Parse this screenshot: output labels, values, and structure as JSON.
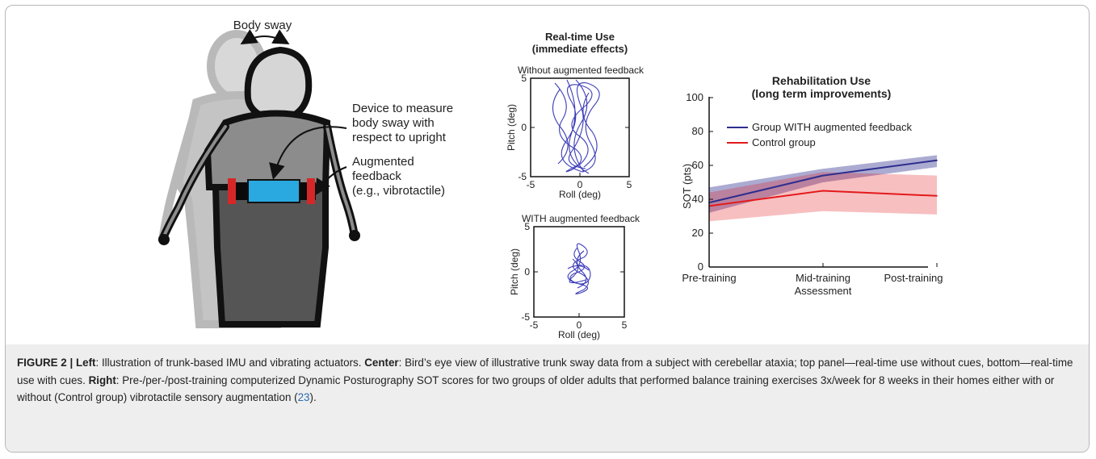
{
  "figure": {
    "left_panel": {
      "body_sway_label": "Body sway",
      "device_label": [
        "Device to measure",
        "body sway with",
        "respect to upright"
      ],
      "feedback_label": [
        "Augmented",
        "feedback",
        "(e.g., vibrotactile)"
      ]
    },
    "center_panel": {
      "title": [
        "Real-time Use",
        "(immediate effects)"
      ],
      "top_plot": {
        "title": "Without augmented feedback",
        "xlabel": "Roll (deg)",
        "ylabel": "Pitch (deg)",
        "xticks": [
          "-5",
          "0",
          "5"
        ],
        "yticks": [
          "5",
          "0",
          "-5"
        ]
      },
      "bottom_plot": {
        "title": "WITH augmented feedback",
        "xlabel": "Roll (deg)",
        "ylabel": "Pitch (deg)",
        "xticks": [
          "-5",
          "0",
          "5"
        ],
        "yticks": [
          "5",
          "0",
          "-5"
        ]
      }
    },
    "right_panel": {
      "title": [
        "Rehabilitation Use",
        "(long term improvements)"
      ],
      "ylabel": "SOT (pts)",
      "xtick_labels": [
        "Pre-training",
        "Mid-training",
        "Assessment",
        "Post-training"
      ],
      "yticks": [
        "100",
        "80",
        "60",
        "40",
        "20",
        "0"
      ],
      "legend": [
        "Group WITH augmented feedback",
        "Control group"
      ]
    }
  },
  "chart_data": [
    {
      "type": "line",
      "title": "Rehabilitation Use (long term improvements)",
      "xlabel": "",
      "ylabel": "SOT (pts)",
      "categories": [
        "Pre-training",
        "Mid-training Assessment",
        "Post-training"
      ],
      "ylim": [
        0,
        100
      ],
      "legend": "top-left",
      "series": [
        {
          "name": "Group WITH augmented feedback",
          "color": "#2e2e8f",
          "values": [
            38,
            54,
            63
          ],
          "band_low": [
            32,
            50,
            59
          ],
          "band_high": [
            47,
            58,
            66
          ]
        },
        {
          "name": "Control group",
          "color": "#e31a1c",
          "values": [
            36,
            45,
            42
          ],
          "band_low": [
            27,
            33,
            31
          ],
          "band_high": [
            44,
            56,
            54
          ]
        }
      ]
    }
  ],
  "caption": {
    "figure_label": "FIGURE 2 | ",
    "left_label": "Left",
    "left_text": ": Illustration of trunk-based IMU and vibrating actuators. ",
    "center_label": "Center",
    "center_text": ": Bird’s eye view of illustrative trunk sway data from a subject with cerebellar ataxia; top panel—real-time use without cues, bottom—real-time use with cues. ",
    "right_label": "Right",
    "right_text": ": Pre-/per-/post-training computerized Dynamic Posturography SOT scores for two groups of older adults that performed balance training exercises 3x/week for 8 weeks in their homes either with or without (Control group) vibrotactile sensory augmentation (",
    "ref": "23",
    "end": ")."
  }
}
